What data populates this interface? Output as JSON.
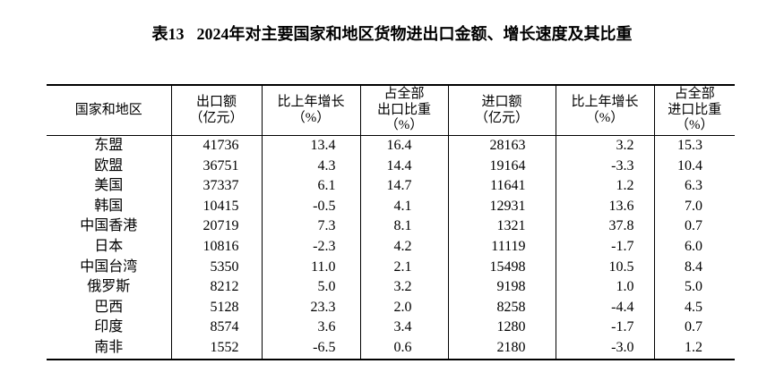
{
  "title": {
    "prefix": "表13",
    "main": "2024年对主要国家和地区货物进出口金额、增长速度及其比重"
  },
  "table": {
    "columns": [
      {
        "name": "region",
        "header": "国家和地区"
      },
      {
        "name": "export-value",
        "header": "出口额\n（亿元）"
      },
      {
        "name": "export-growth",
        "header": "比上年增长\n（%）"
      },
      {
        "name": "export-share",
        "header": "占全部\n出口比重\n（%）"
      },
      {
        "name": "import-value",
        "header": "进口额\n（亿元）"
      },
      {
        "name": "import-growth",
        "header": "比上年增长\n（%）"
      },
      {
        "name": "import-share",
        "header": "占全部\n进口比重\n（%）"
      }
    ],
    "rows": [
      [
        "东盟",
        "41736",
        "13.4",
        "16.4",
        "28163",
        "3.2",
        "15.3"
      ],
      [
        "欧盟",
        "36751",
        "4.3",
        "14.4",
        "19164",
        "-3.3",
        "10.4"
      ],
      [
        "美国",
        "37337",
        "6.1",
        "14.7",
        "11641",
        "1.2",
        "6.3"
      ],
      [
        "韩国",
        "10415",
        "-0.5",
        "4.1",
        "12931",
        "13.6",
        "7.0"
      ],
      [
        "中国香港",
        "20719",
        "7.3",
        "8.1",
        "1321",
        "37.8",
        "0.7"
      ],
      [
        "日本",
        "10816",
        "-2.3",
        "4.2",
        "11119",
        "-1.7",
        "6.0"
      ],
      [
        "中国台湾",
        "5350",
        "11.0",
        "2.1",
        "15498",
        "10.5",
        "8.4"
      ],
      [
        "俄罗斯",
        "8212",
        "5.0",
        "3.2",
        "9198",
        "1.0",
        "5.0"
      ],
      [
        "巴西",
        "5128",
        "23.3",
        "2.0",
        "8258",
        "-4.4",
        "4.5"
      ],
      [
        "印度",
        "8574",
        "3.6",
        "3.4",
        "1280",
        "-1.7",
        "0.7"
      ],
      [
        "南非",
        "1552",
        "-6.5",
        "0.6",
        "2180",
        "-3.0",
        "1.2"
      ]
    ]
  }
}
